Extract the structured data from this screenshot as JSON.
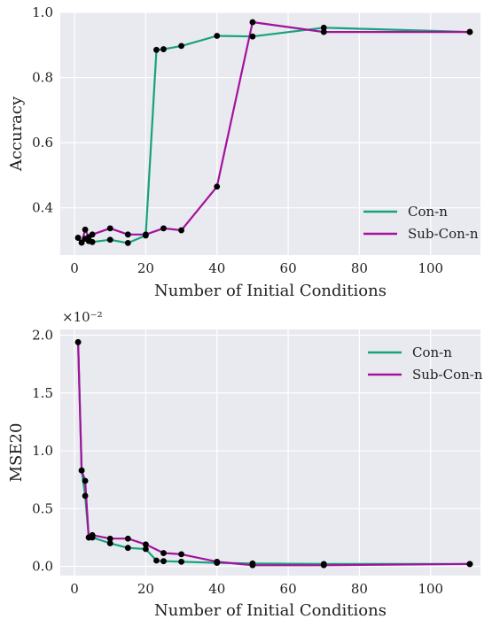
{
  "colors": {
    "con": "#14a37a",
    "subcon": "#a3129c",
    "marker": "#000000",
    "panel_bg": "#e9e9f0",
    "grid": "#ffffff"
  },
  "chart_data": [
    {
      "type": "line",
      "xlabel": "Number of Initial Conditions",
      "ylabel": "Accuracy",
      "xlim": [
        -4,
        114
      ],
      "ylim": [
        0.255,
        1.0
      ],
      "xticks": [
        0,
        20,
        40,
        60,
        80,
        100
      ],
      "yticks": [
        0.4,
        0.6,
        0.8,
        1.0
      ],
      "xtick_labels": [
        "0",
        "20",
        "40",
        "60",
        "80",
        "100"
      ],
      "ytick_labels": [
        "0.4",
        "0.6",
        "0.8",
        "1.0"
      ],
      "legend_position": "lower-right",
      "grid": true,
      "series": [
        {
          "name": "Con-n",
          "color_key": "con",
          "x": [
            1,
            2,
            3,
            4,
            5,
            10,
            15,
            20,
            23,
            25,
            30,
            40,
            50,
            70,
            111
          ],
          "y": [
            0.308,
            0.293,
            0.305,
            0.298,
            0.295,
            0.302,
            0.292,
            0.315,
            0.885,
            0.887,
            0.897,
            0.928,
            0.926,
            0.953,
            0.94
          ]
        },
        {
          "name": "Sub-Con-n",
          "color_key": "subcon",
          "x": [
            1,
            2,
            3,
            4,
            5,
            10,
            15,
            20,
            25,
            30,
            40,
            50,
            70,
            111
          ],
          "y": [
            0.308,
            0.293,
            0.333,
            0.31,
            0.318,
            0.337,
            0.318,
            0.318,
            0.337,
            0.331,
            0.465,
            0.97,
            0.94,
            0.94
          ]
        }
      ]
    },
    {
      "type": "line",
      "xlabel": "Number of Initial Conditions",
      "ylabel": "MSE20",
      "scale_label": "×10⁻²",
      "xlim": [
        -4,
        114
      ],
      "ylim": [
        -0.08,
        2.05
      ],
      "xticks": [
        0,
        20,
        40,
        60,
        80,
        100
      ],
      "yticks": [
        0.0,
        0.5,
        1.0,
        1.5,
        2.0
      ],
      "xtick_labels": [
        "0",
        "20",
        "40",
        "60",
        "80",
        "100"
      ],
      "ytick_labels": [
        "0.0",
        "0.5",
        "1.0",
        "1.5",
        "2.0"
      ],
      "legend_position": "upper-right",
      "grid": true,
      "series": [
        {
          "name": "Con-n",
          "color_key": "con",
          "x": [
            1,
            2,
            3,
            4,
            5,
            10,
            15,
            20,
            23,
            25,
            30,
            40,
            50,
            70,
            111
          ],
          "y": [
            1.94,
            0.83,
            0.61,
            0.25,
            0.25,
            0.2,
            0.16,
            0.15,
            0.05,
            0.045,
            0.04,
            0.03,
            0.025,
            0.02,
            0.02
          ]
        },
        {
          "name": "Sub-Con-n",
          "color_key": "subcon",
          "x": [
            1,
            2,
            3,
            4,
            5,
            10,
            15,
            20,
            25,
            30,
            40,
            50,
            70,
            111
          ],
          "y": [
            1.94,
            0.83,
            0.74,
            0.25,
            0.27,
            0.24,
            0.24,
            0.19,
            0.115,
            0.105,
            0.04,
            0.01,
            0.01,
            0.02
          ]
        }
      ]
    }
  ]
}
